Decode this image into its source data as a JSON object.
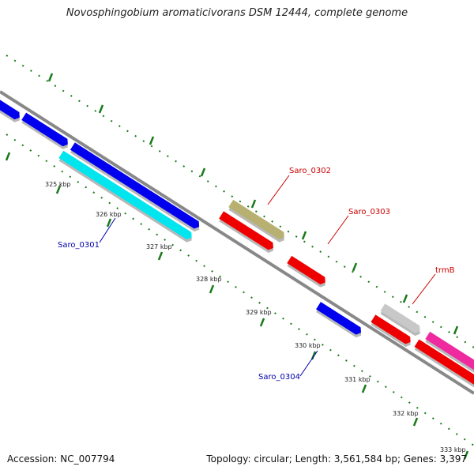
{
  "map": {
    "title": "Novosphingobium aromaticivorans DSM 12444, complete genome",
    "accession_text": "Accession: NC_007794",
    "topology_text": "Topology: circular; Length: 3,561,584 bp; Genes: 3,397"
  },
  "ticks": [
    {
      "label": "325 kbp"
    },
    {
      "label": "326 kbp"
    },
    {
      "label": "327 kbp"
    },
    {
      "label": "328 kbp"
    },
    {
      "label": "329 kbp"
    },
    {
      "label": "330 kbp"
    },
    {
      "label": "331 kbp"
    },
    {
      "label": "332 kbp"
    },
    {
      "label": "333 kbp"
    }
  ],
  "gene_labels": [
    {
      "name": "Saro_0301",
      "color": "#0000aa"
    },
    {
      "name": "Saro_0302",
      "color": "#cc0000"
    },
    {
      "name": "Saro_0303",
      "color": "#cc0000"
    },
    {
      "name": "trmB",
      "color": "#cc0000"
    },
    {
      "name": "Saro_0304",
      "color": "#0000aa"
    }
  ],
  "colors": {
    "forward_cds": "#0000ee",
    "reverse_cds": "#ee0000",
    "highlight_cds": "#00e5ee",
    "olive_feature": "#b8b070",
    "grey_feature": "#c8c8c8",
    "magenta_feature": "#ee2a9e",
    "backbone": "#888888",
    "tick_marks": "#1a7a1a"
  }
}
